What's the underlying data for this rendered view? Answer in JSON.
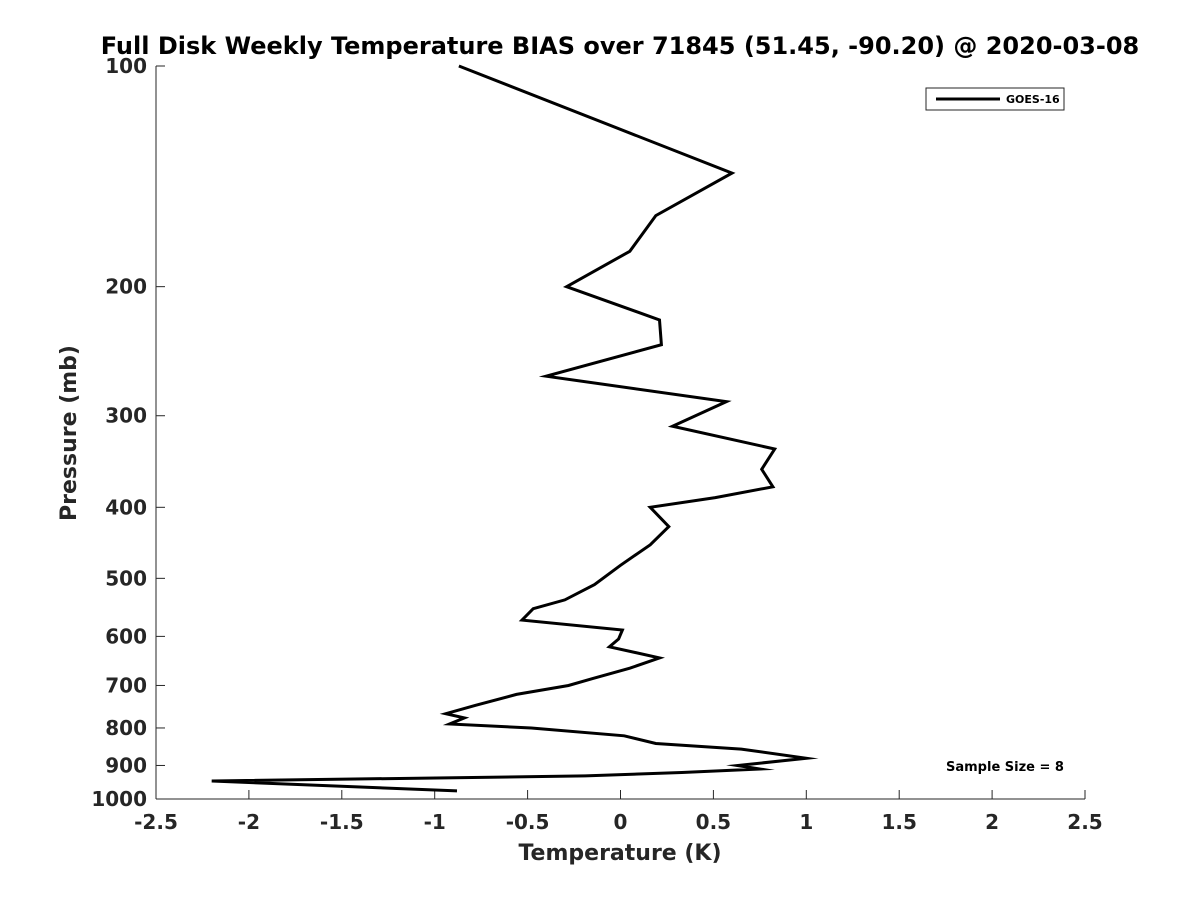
{
  "chart_data": {
    "type": "line",
    "title": "Full Disk Weekly Temperature BIAS over 71845 (51.45, -90.20) @ 2020-03-08",
    "xlabel": "Temperature (K)",
    "ylabel": "Pressure (mb)",
    "xlim": [
      -2.5,
      2.5
    ],
    "ylim": [
      100,
      1000
    ],
    "y_scale": "log",
    "y_reversed": true,
    "x_ticks": [
      "-2.5",
      "-2",
      "-1.5",
      "-1",
      "-0.5",
      "0",
      "0.5",
      "1",
      "1.5",
      "2",
      "2.5"
    ],
    "y_ticks": [
      "100",
      "200",
      "300",
      "400",
      "500",
      "600",
      "700",
      "800",
      "900",
      "1000"
    ],
    "grid": false,
    "legend_position": "top-right",
    "annotation": "Sample Size = 8",
    "series": [
      {
        "name": "GOES-16",
        "color": "#000000",
        "points": [
          {
            "x": -0.87,
            "p": 100
          },
          {
            "x": 0.6,
            "p": 140
          },
          {
            "x": 0.19,
            "p": 160
          },
          {
            "x": 0.05,
            "p": 179
          },
          {
            "x": -0.29,
            "p": 200
          },
          {
            "x": 0.21,
            "p": 222
          },
          {
            "x": 0.22,
            "p": 240
          },
          {
            "x": -0.4,
            "p": 265
          },
          {
            "x": 0.57,
            "p": 287
          },
          {
            "x": 0.28,
            "p": 310
          },
          {
            "x": 0.83,
            "p": 333
          },
          {
            "x": 0.76,
            "p": 355
          },
          {
            "x": 0.82,
            "p": 375
          },
          {
            "x": 0.51,
            "p": 388
          },
          {
            "x": 0.16,
            "p": 400
          },
          {
            "x": 0.26,
            "p": 425
          },
          {
            "x": 0.16,
            "p": 450
          },
          {
            "x": 0.0,
            "p": 480
          },
          {
            "x": -0.14,
            "p": 510
          },
          {
            "x": -0.3,
            "p": 535
          },
          {
            "x": -0.47,
            "p": 550
          },
          {
            "x": -0.53,
            "p": 570
          },
          {
            "x": 0.01,
            "p": 588
          },
          {
            "x": -0.01,
            "p": 605
          },
          {
            "x": -0.06,
            "p": 620
          },
          {
            "x": 0.21,
            "p": 642
          },
          {
            "x": 0.05,
            "p": 663
          },
          {
            "x": -0.15,
            "p": 685
          },
          {
            "x": -0.28,
            "p": 700
          },
          {
            "x": -0.56,
            "p": 720
          },
          {
            "x": -0.78,
            "p": 745
          },
          {
            "x": -0.94,
            "p": 765
          },
          {
            "x": -0.84,
            "p": 775
          },
          {
            "x": -0.92,
            "p": 790
          },
          {
            "x": -0.48,
            "p": 800
          },
          {
            "x": 0.02,
            "p": 820
          },
          {
            "x": 0.19,
            "p": 840
          },
          {
            "x": 0.65,
            "p": 855
          },
          {
            "x": 1.0,
            "p": 880
          },
          {
            "x": 0.63,
            "p": 900
          },
          {
            "x": 0.75,
            "p": 910
          },
          {
            "x": 0.33,
            "p": 920
          },
          {
            "x": -0.19,
            "p": 930
          },
          {
            "x": -2.2,
            "p": 945
          },
          {
            "x": -0.88,
            "p": 975
          }
        ]
      }
    ]
  }
}
